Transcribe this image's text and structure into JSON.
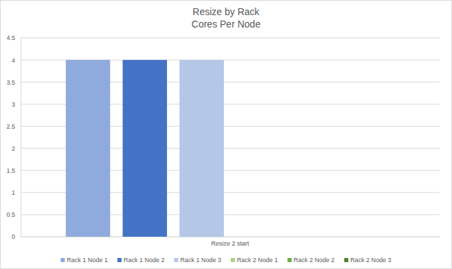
{
  "chart_data": {
    "type": "bar",
    "title": "Resize by Rack",
    "subtitle": "Cores Per Node",
    "categories": [
      "Resize 2 start"
    ],
    "series": [
      {
        "name": "Rack 1 Node 1",
        "color": "#8faadc",
        "values": [
          4
        ]
      },
      {
        "name": "Rack 1 Node 2",
        "color": "#4472c4",
        "values": [
          4
        ]
      },
      {
        "name": "Rack 1 Node 3",
        "color": "#b4c7e7",
        "values": [
          4
        ]
      },
      {
        "name": "Rack 2 Node 1",
        "color": "#a9d18e",
        "values": [
          0
        ]
      },
      {
        "name": "Rack 2 Node 2",
        "color": "#70ad47",
        "values": [
          0
        ]
      },
      {
        "name": "Rack 2 Node 3",
        "color": "#548235",
        "values": [
          0
        ]
      }
    ],
    "ylim": [
      0,
      4.5
    ],
    "yticks": [
      0,
      0.5,
      1,
      1.5,
      2,
      2.5,
      3,
      3.5,
      4,
      4.5
    ],
    "grid": true,
    "legend": "bottom"
  }
}
